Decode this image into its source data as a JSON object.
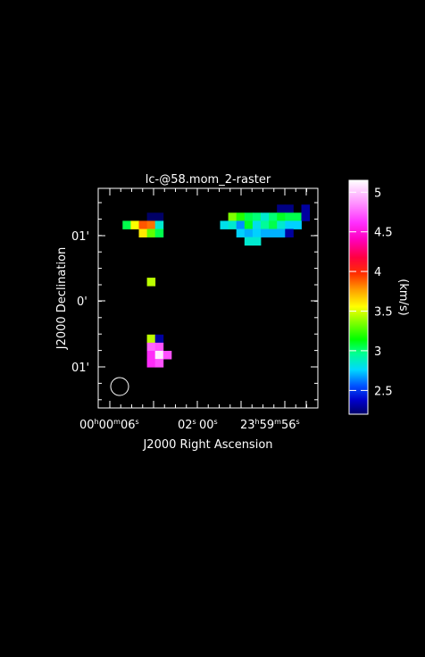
{
  "chart_data": {
    "type": "heatmap",
    "title": "lc-@58.mom_2-raster",
    "xlabel": "J2000 Right Ascension",
    "ylabel": "J2000 Declination",
    "colorbar_label": "(km/s)",
    "x_ticks": [
      {
        "main": "00",
        "sup1": "h",
        "mid": "00",
        "sup2": "m",
        "end": "06",
        "sup3": "s"
      },
      {
        "main": "02",
        "sup3": "s"
      },
      {
        "main": "00",
        "sup3": "s"
      },
      {
        "main": "23",
        "sup1": "h",
        "mid": "59",
        "sup2": "m",
        "end": "56",
        "sup3": "s"
      }
    ],
    "y_ticks": [
      "01'",
      "0'",
      "01'"
    ],
    "colorbar_ticks": [
      "2.5",
      "3",
      "3.5",
      "4",
      "4.5",
      "5"
    ],
    "value_range": [
      2.2,
      5.15
    ],
    "grid": false,
    "beam": "circle-bottom-left",
    "pixel_grid": {
      "cols": 26,
      "rows": 27
    },
    "pixels": [
      [
        22,
        2,
        2.25
      ],
      [
        23,
        2,
        2.25
      ],
      [
        25,
        2,
        2.3
      ],
      [
        6,
        3,
        2.2
      ],
      [
        7,
        3,
        2.2
      ],
      [
        16,
        3,
        3.35
      ],
      [
        17,
        3,
        3.2
      ],
      [
        18,
        3,
        3.05
      ],
      [
        19,
        3,
        3.0
      ],
      [
        20,
        3,
        2.85
      ],
      [
        21,
        3,
        3.0
      ],
      [
        22,
        3,
        3.1
      ],
      [
        23,
        3,
        3.05
      ],
      [
        24,
        3,
        3.05
      ],
      [
        25,
        3,
        2.3
      ],
      [
        3,
        4,
        3.05
      ],
      [
        4,
        4,
        3.55
      ],
      [
        5,
        4,
        3.9
      ],
      [
        6,
        4,
        3.85
      ],
      [
        7,
        4,
        2.85
      ],
      [
        15,
        4,
        2.8
      ],
      [
        16,
        4,
        2.85
      ],
      [
        17,
        4,
        2.65
      ],
      [
        18,
        4,
        3.1
      ],
      [
        19,
        4,
        2.8
      ],
      [
        20,
        4,
        2.95
      ],
      [
        21,
        4,
        3.05
      ],
      [
        22,
        4,
        2.85
      ],
      [
        23,
        4,
        2.75
      ],
      [
        24,
        4,
        2.75
      ],
      [
        5,
        5,
        3.6
      ],
      [
        6,
        5,
        3.3
      ],
      [
        7,
        5,
        3.05
      ],
      [
        17,
        5,
        2.75
      ],
      [
        18,
        5,
        2.7
      ],
      [
        19,
        5,
        2.75
      ],
      [
        20,
        5,
        2.7
      ],
      [
        21,
        5,
        2.7
      ],
      [
        22,
        5,
        2.7
      ],
      [
        23,
        5,
        2.3
      ],
      [
        18,
        6,
        2.85
      ],
      [
        19,
        6,
        2.85
      ],
      [
        6,
        11,
        3.45
      ],
      [
        6,
        18,
        3.45
      ],
      [
        7,
        18,
        2.3
      ],
      [
        6,
        19,
        4.75
      ],
      [
        7,
        19,
        4.7
      ],
      [
        6,
        20,
        4.6
      ],
      [
        7,
        20,
        5.1
      ],
      [
        8,
        20,
        4.7
      ],
      [
        6,
        21,
        4.6
      ],
      [
        7,
        21,
        4.7
      ]
    ]
  }
}
